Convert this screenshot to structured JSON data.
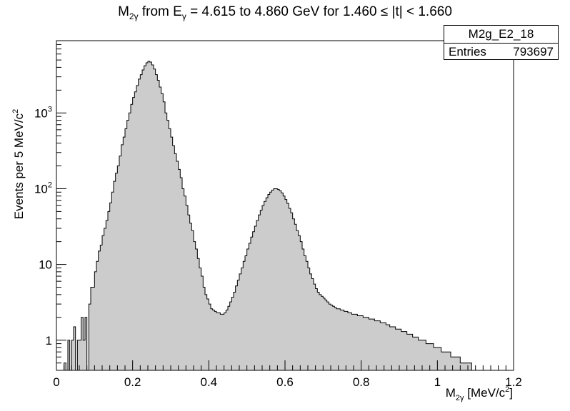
{
  "chart_data": {
    "type": "histogram",
    "title": {
      "prefix": "M",
      "prefix_sub": "2γ",
      "mid1": " from E",
      "mid1_sub": "γ",
      "rest": " = 4.615 to 4.860 GeV for 1.460 ≤ |t| < 1.660"
    },
    "xlabel": {
      "base": "M",
      "sub": "2γ",
      "rest": " [MeV/c",
      "sup": "2",
      "end": "]"
    },
    "ylabel": {
      "text": "Events per 5 MeV/c",
      "sup": "2"
    },
    "x_ticks": [
      "0",
      "0.2",
      "0.4",
      "0.6",
      "0.8",
      "1",
      "1.2"
    ],
    "y_ticks": [
      "1",
      "10",
      "10²",
      "10³"
    ],
    "xlim": [
      0,
      1.2
    ],
    "ylim": [
      0.4,
      9000
    ],
    "y_scale": "log",
    "bin_width": 0.005,
    "fill_color": "#cccccc",
    "line_color": "#000000",
    "stats": {
      "name": "M2g_E2_18",
      "entries_label": "Entries",
      "entries_value": "793697"
    },
    "features": {
      "peak1": {
        "center": 0.135,
        "height": 4800,
        "sigma": 0.033
      },
      "peak2": {
        "center": 0.548,
        "height": 100,
        "sigma": 0.05
      }
    },
    "values": [
      0,
      0,
      0,
      0,
      0.5,
      0,
      1,
      0,
      1,
      1.5,
      0,
      1,
      1,
      2,
      1,
      2,
      0,
      3,
      5,
      5,
      8,
      11,
      15,
      18,
      24,
      30,
      38,
      50,
      65,
      90,
      125,
      160,
      200,
      270,
      380,
      480,
      620,
      800,
      1000,
      1300,
      1600,
      1900,
      2300,
      2800,
      3200,
      3700,
      4200,
      4600,
      4800,
      4700,
      4300,
      3800,
      3200,
      2700,
      2200,
      1800,
      1400,
      1000,
      800,
      620,
      480,
      370,
      290,
      230,
      180,
      140,
      100,
      80,
      60,
      45,
      35,
      28,
      20,
      16,
      12,
      9,
      7,
      5,
      4,
      3.5,
      3,
      2.6,
      2.5,
      2.4,
      2.3,
      2.3,
      2.2,
      2.2,
      2.3,
      2.5,
      2.8,
      3.2,
      3.7,
      4.3,
      5.2,
      6.2,
      7.5,
      9,
      11,
      13,
      16,
      19,
      23,
      27,
      32,
      38,
      45,
      52,
      60,
      68,
      76,
      84,
      90,
      96,
      100,
      100,
      98,
      94,
      88,
      80,
      72,
      64,
      55,
      48,
      40,
      34,
      28,
      24,
      20,
      16,
      13,
      11,
      9,
      7.5,
      6.5,
      5.5,
      4.8,
      4.3,
      4,
      3.8,
      3.6,
      3.4,
      3.2,
      3,
      2.9,
      2.8,
      2.7,
      2.6,
      2.6,
      2.5,
      2.5,
      2.4,
      2.4,
      2.3,
      2.3,
      2.2,
      2.2,
      2.2,
      2.1,
      2.1,
      2.1,
      2,
      2,
      2,
      1.9,
      1.9,
      1.9,
      1.8,
      1.8,
      1.8,
      1.7,
      1.7,
      1.7,
      1.6,
      1.6,
      1.5,
      1.5,
      1.5,
      1.4,
      1.4,
      1.4,
      1.3,
      1.3,
      1.3,
      1.2,
      1.2,
      1.2,
      1.1,
      1.1,
      1.1,
      1,
      1,
      1,
      1,
      0.9,
      0.9,
      0.9,
      0.9,
      0.8,
      0.8,
      0.8,
      0.8,
      0.7,
      0.7,
      0.7,
      0.7,
      0.7,
      0.6,
      0.6,
      0.6,
      0.6,
      0.6,
      0.5,
      0.5,
      0.5,
      0.5,
      0.5,
      0.5,
      0.4,
      0.4,
      0.4,
      0.4,
      0.4,
      0.4,
      0.4,
      0.3,
      0.3,
      0.3,
      0.3,
      0.3,
      0.3,
      0.3,
      0.3,
      0.3
    ]
  }
}
